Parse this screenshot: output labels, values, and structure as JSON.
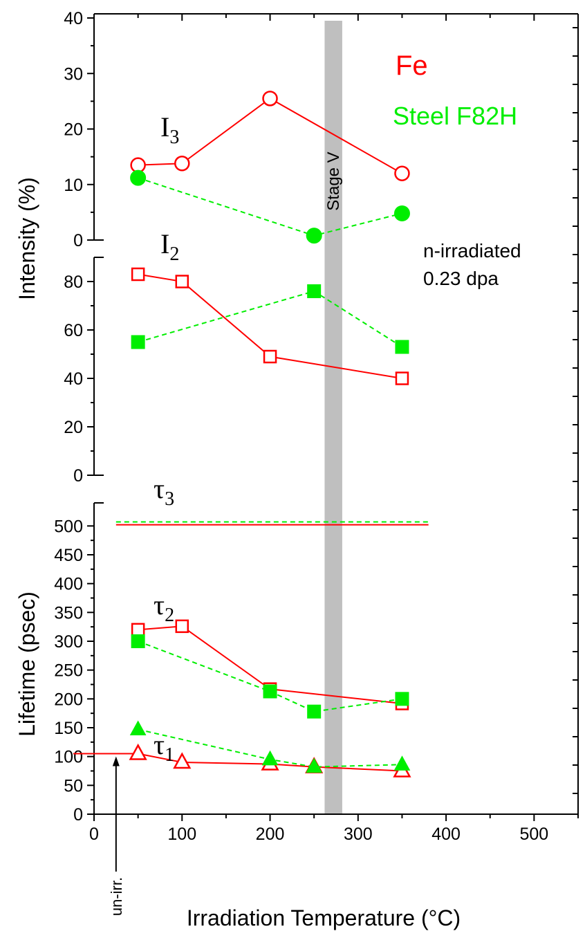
{
  "chart_data": {
    "type": "line",
    "xlabel": "Irradiation Temperature (°C)",
    "xlim": [
      0,
      550
    ],
    "x_ticks": [
      0,
      100,
      200,
      300,
      400,
      500
    ],
    "legend": [
      {
        "name": "Fe",
        "color": "#ff0000"
      },
      {
        "name": "Steel F82H",
        "color": "#00ee00"
      }
    ],
    "annotations": {
      "condition_line1": "n-irradiated",
      "condition_line2": "0.23 dpa",
      "stage_band_label": "Stage V",
      "stage_band_range": [
        262,
        282
      ],
      "unirr_label": "un-irr.",
      "unirr_x": 25,
      "unirr_value": 105
    },
    "panels": [
      {
        "id": "I3",
        "ylim": [
          0,
          40
        ],
        "y_ticks": [
          0,
          10,
          20,
          30,
          40
        ],
        "label_main": "I",
        "label_sub": "3",
        "series": [
          {
            "name": "Fe",
            "marker": "circle-open",
            "style": "solid",
            "x": [
              50,
              100,
              200,
              350
            ],
            "y": [
              13.5,
              13.8,
              25.5,
              12.0
            ]
          },
          {
            "name": "Steel F82H",
            "marker": "circle-filled",
            "style": "dashed",
            "x": [
              50,
              250,
              350
            ],
            "y": [
              11.2,
              0.8,
              4.8
            ]
          }
        ]
      },
      {
        "id": "I2",
        "ylim": [
          0,
          90
        ],
        "y_ticks": [
          0,
          20,
          40,
          60,
          80
        ],
        "label_main": "I",
        "label_sub": "2",
        "series": [
          {
            "name": "Fe",
            "marker": "square-open",
            "style": "solid",
            "x": [
              50,
              100,
              200,
              350
            ],
            "y": [
              83,
              80,
              49,
              40
            ]
          },
          {
            "name": "Steel F82H",
            "marker": "square-filled",
            "style": "dashed",
            "x": [
              50,
              250,
              350
            ],
            "y": [
              55,
              76,
              53
            ]
          }
        ]
      },
      {
        "id": "tau",
        "ylim": [
          0,
          540
        ],
        "y_ticks": [
          0,
          50,
          100,
          150,
          200,
          250,
          300,
          350,
          400,
          450,
          500
        ],
        "labels": [
          {
            "main": "τ",
            "sub": "3",
            "x": 90,
            "y": 520
          },
          {
            "main": "τ",
            "sub": "2",
            "x": 90,
            "y": 345
          },
          {
            "main": "τ",
            "sub": "1",
            "x": 90,
            "y": 160
          }
        ],
        "series": [
          {
            "name": "Fe",
            "marker": "none",
            "style": "solid",
            "x": [
              25,
              380
            ],
            "y": [
              502,
              502
            ]
          },
          {
            "name": "Steel F82H",
            "marker": "none",
            "style": "dashed",
            "x": [
              25,
              380
            ],
            "y": [
              507,
              507
            ]
          },
          {
            "name": "Fe",
            "marker": "square-open",
            "style": "solid",
            "x": [
              50,
              100,
              200,
              350
            ],
            "y": [
              320,
              326,
              217,
              192
            ]
          },
          {
            "name": "Steel F82H",
            "marker": "square-filled",
            "style": "dashed",
            "x": [
              50,
              200,
              250,
              350
            ],
            "y": [
              300,
              213,
              178,
              200
            ]
          },
          {
            "name": "Fe",
            "marker": "triangle-open",
            "style": "solid",
            "x": [
              0,
              50,
              100,
              200,
              250,
              350
            ],
            "y": [
              105,
              105,
              90,
              87,
              82,
              75
            ]
          },
          {
            "name": "Steel F82H",
            "marker": "triangle-filled",
            "style": "dashed",
            "x": [
              50,
              200,
              250,
              350
            ],
            "y": [
              147,
              95,
              82,
              86
            ]
          }
        ]
      }
    ],
    "left_axis_labels": {
      "upper": "Intensity (%)",
      "lower": "Lifetime (psec)"
    }
  }
}
